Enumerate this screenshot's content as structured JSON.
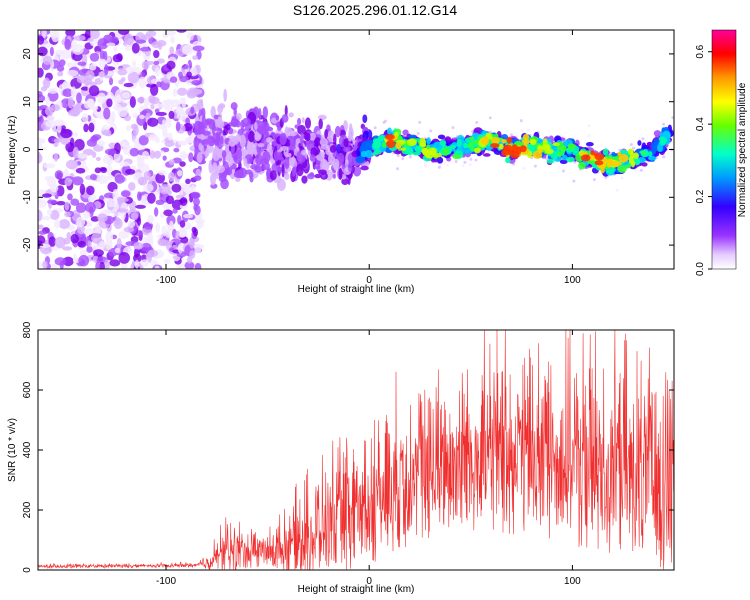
{
  "figure_title": "S126.2025.296.01.12.G14",
  "colors": {
    "snr_line": "#f03030",
    "axis": "#000000",
    "background": "#ffffff"
  },
  "chart_data": [
    {
      "type": "heatmap",
      "title": "S126.2025.296.01.12.G14",
      "xlabel": "Height of straight line (km)",
      "ylabel": "Frequency (Hz)",
      "xlim": [
        -163,
        150
      ],
      "ylim": [
        -25,
        25
      ],
      "xticks": [
        -100,
        0,
        100
      ],
      "xtick_labels": [
        "-100",
        "0",
        "100"
      ],
      "yticks": [
        -20,
        -10,
        0,
        10,
        20
      ],
      "ytick_labels": [
        "-20",
        "-10",
        "0",
        "10",
        "20"
      ],
      "colorbar": {
        "label": "Normalized spectral amplitude",
        "range": [
          0.0,
          0.66
        ],
        "ticks": [
          0.0,
          0.2,
          0.4,
          0.6
        ],
        "tick_labels": [
          "0.0",
          "0.2",
          "0.4",
          "0.6"
        ],
        "colormap": "rainbow (white-purple-blue-cyan-green-yellow-orange-red-magenta)"
      },
      "signal_ridge": {
        "description": "narrow high-amplitude band near 0 Hz from about 0 to 150 km; diffuse noise below -85 km",
        "x": [
          -80,
          -60,
          -40,
          -20,
          0,
          10,
          20,
          30,
          40,
          50,
          60,
          70,
          80,
          90,
          100,
          110,
          120,
          130,
          140,
          148
        ],
        "frequency_hz": [
          2,
          1,
          0,
          -1,
          0,
          2,
          1,
          0,
          0,
          1,
          2,
          0,
          1,
          0,
          0,
          -2,
          -3,
          -2,
          0,
          3
        ],
        "peak_amplitude": [
          0.12,
          0.15,
          0.18,
          0.2,
          0.25,
          0.55,
          0.4,
          0.45,
          0.35,
          0.4,
          0.5,
          0.62,
          0.5,
          0.45,
          0.4,
          0.55,
          0.5,
          0.45,
          0.35,
          0.3
        ]
      }
    },
    {
      "type": "line",
      "xlabel": "Height of straight line (km)",
      "ylabel": "SNR (10 * v/v)",
      "xlim": [
        -163,
        150
      ],
      "ylim": [
        0,
        800
      ],
      "xticks": [
        -100,
        0,
        100
      ],
      "xtick_labels": [
        "-100",
        "0",
        "100"
      ],
      "yticks": [
        0,
        200,
        400,
        600,
        800
      ],
      "ytick_labels": [
        "0",
        "200",
        "400",
        "600",
        "800"
      ],
      "series": [
        {
          "name": "SNR",
          "envelope_x": [
            -163,
            -100,
            -85,
            -78,
            -70,
            -60,
            -50,
            -40,
            -30,
            -20,
            -10,
            0,
            10,
            20,
            30,
            40,
            50,
            60,
            70,
            80,
            90,
            100,
            110,
            120,
            130,
            140,
            150
          ],
          "envelope_base": [
            10,
            12,
            14,
            20,
            40,
            45,
            40,
            55,
            70,
            90,
            120,
            160,
            200,
            230,
            250,
            280,
            300,
            310,
            310,
            300,
            290,
            280,
            260,
            250,
            230,
            220,
            200
          ],
          "envelope_spread": [
            10,
            10,
            12,
            50,
            130,
            90,
            90,
            150,
            230,
            260,
            290,
            320,
            350,
            370,
            390,
            400,
            420,
            430,
            440,
            440,
            430,
            460,
            480,
            470,
            460,
            480,
            520
          ],
          "max_value": 800
        }
      ]
    }
  ]
}
